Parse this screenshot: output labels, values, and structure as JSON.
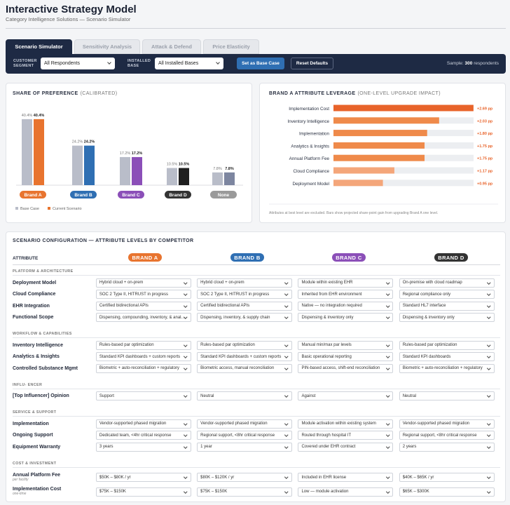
{
  "header": {
    "title": "Interactive Strategy Model",
    "subtitle": "Category Intelligence Solutions — Scenario Simulator"
  },
  "tabs": [
    "Scenario Simulator",
    "Sensitivity Analysis",
    "Attack & Defend",
    "Price Elasticity"
  ],
  "filters": {
    "customer_segment": {
      "label": "CUSTOMER SEGMENT",
      "value": "All Respondents"
    },
    "installed_base": {
      "label": "INSTALLED BASE",
      "value": "All Installed Bases"
    },
    "buttons": [
      "Set as Base Case",
      "Reset Defaults"
    ],
    "sample": {
      "label": "Sample:",
      "count": 300,
      "unit": "respondents"
    }
  },
  "chart_data": [
    {
      "type": "bar",
      "title": "SHARE OF PREFERENCE",
      "subtitle": "(CALIBRATED)",
      "categories": [
        "Brand A",
        "Brand B",
        "Brand C",
        "Brand D",
        "None"
      ],
      "category_colors": [
        "#e8742f",
        "#2f6fb3",
        "#8b4fb8",
        "#333333",
        "#9a9a9a"
      ],
      "series": [
        {
          "name": "Base Case",
          "color": "#b9bdc9",
          "values": [
            40.4,
            24.2,
            17.2,
            10.5,
            7.8
          ],
          "value_labels": [
            "40.4%",
            "24.2%",
            "17.2%",
            "10.5%",
            "7.8%"
          ]
        },
        {
          "name": "Current Scenario",
          "color": "#e8742f",
          "colors": [
            "#e8742f",
            "#2f6fb3",
            "#8b4fb8",
            "#1f1f1f",
            "#7d86a0"
          ],
          "values": [
            40.4,
            24.2,
            17.2,
            10.5,
            7.8
          ],
          "value_labels": [
            "40.4%",
            "24.2%",
            "17.2%",
            "10.5%",
            "7.8%"
          ]
        }
      ]
    },
    {
      "type": "barh",
      "title": "BRAND A ATTRIBUTE LEVERAGE",
      "subtitle": "(ONE-LEVEL UPGRADE IMPACT)",
      "categories": [
        "Implementation Cost",
        "Inventory Intelligence",
        "Implementation",
        "Analytics & Insights",
        "Annual Platform Fee",
        "Cloud Compliance",
        "Deployment Model"
      ],
      "values": [
        2.69,
        2.03,
        1.8,
        1.75,
        1.75,
        1.17,
        0.95
      ],
      "value_labels": [
        "+2.69 pp",
        "+2.03 pp",
        "+1.80 pp",
        "+1.75 pp",
        "+1.75 pp",
        "+1.17 pp",
        "+0.95 pp"
      ],
      "colors": [
        "#e8632a",
        "#ef8a4a",
        "#ef8a4a",
        "#ef8a4a",
        "#ef8a4a",
        "#f4a67a",
        "#f4a67a"
      ],
      "footnote": "Attributes at best level are excluded. Bars show projected share-point gain from upgrading Brand A one level."
    }
  ],
  "config": {
    "title": "SCENARIO CONFIGURATION — ATTRIBUTE LEVELS BY COMPETITOR",
    "attribute_header": "ATTRIBUTE",
    "brands": [
      "BRAND A",
      "BRAND B",
      "BRAND C",
      "BRAND D"
    ],
    "brand_colors": [
      "#e8742f",
      "#2f6fb3",
      "#8b4fb8",
      "#333333"
    ],
    "sections": [
      {
        "title": "PLATFORM & ARCHITECTURE",
        "rows": [
          {
            "label": "Deployment Model",
            "values": [
              "Hybrid cloud + on-prem",
              "Hybrid cloud + on-prem",
              "Module within existing EHR",
              "On-premise with cloud roadmap"
            ]
          },
          {
            "label": "Cloud Compliance",
            "values": [
              "SOC 2 Type II, HITRUST in progress",
              "SOC 2 Type II, HITRUST in progress",
              "Inherited from EHR environment",
              "Regional compliance only"
            ]
          },
          {
            "label": "EHR Integration",
            "values": [
              "Certified bidirectional APIs",
              "Certified bidirectional APIs",
              "Native — no integration required",
              "Standard HL7 interface"
            ]
          },
          {
            "label": "Functional Scope",
            "values": [
              "Dispensing, compounding, inventory, & anal…",
              "Dispensing, inventory, & supply chain",
              "Dispensing & inventory only",
              "Dispensing & inventory only"
            ]
          }
        ]
      },
      {
        "title": "WORKFLOW & CAPABILITIES",
        "rows": [
          {
            "label": "Inventory Intelligence",
            "values": [
              "Rules-based par optimization",
              "Rules-based par optimization",
              "Manual min/max par levels",
              "Rules-based par optimization"
            ]
          },
          {
            "label": "Analytics & Insights",
            "values": [
              "Standard KPI dashboards + custom reports",
              "Standard KPI dashboards + custom reports",
              "Basic operational reporting",
              "Standard KPI dashboards"
            ]
          },
          {
            "label": "Controlled Substance Mgmt",
            "values": [
              "Biometric + auto-reconciliation + regulatory",
              "Biometric access, manual reconciliation",
              "PIN-based access, shift-end reconciliation",
              "Biometric + auto-reconciliation + regulatory"
            ]
          }
        ]
      },
      {
        "title": "INFLU- ENCER",
        "rows": [
          {
            "label": "[Top Influencer] Opinion",
            "values": [
              "Support",
              "Neutral",
              "Against",
              "Neutral"
            ]
          }
        ]
      },
      {
        "title": "SERVICE & SUPPORT",
        "rows": [
          {
            "label": "Implementation",
            "values": [
              "Vendor-supported phased migration",
              "Vendor-supported phased migration",
              "Module activation within existing system",
              "Vendor-supported phased migration"
            ]
          },
          {
            "label": "Ongoing Support",
            "values": [
              "Dedicated team, <4hr critical response",
              "Regional support, <8hr critical response",
              "Routed through hospital IT",
              "Regional support, <8hr critical response"
            ]
          },
          {
            "label": "Equipment Warranty",
            "values": [
              "3 years",
              "1 year",
              "Covered under EHR contract",
              "2 years"
            ]
          }
        ]
      },
      {
        "title": "COST & INVESTMENT",
        "rows": [
          {
            "label": "Annual Platform Fee",
            "sublabel": "per facility",
            "values": [
              "$50K – $80K / yr",
              "$80K – $120K / yr",
              "Included in EHR license",
              "$40K – $65K / yr"
            ]
          },
          {
            "label": "Implementation Cost",
            "sublabel": "one-time",
            "values": [
              "$75K – $150K",
              "$75K – $150K",
              "Low — module activation",
              "$65K – $300K"
            ]
          }
        ]
      }
    ]
  }
}
